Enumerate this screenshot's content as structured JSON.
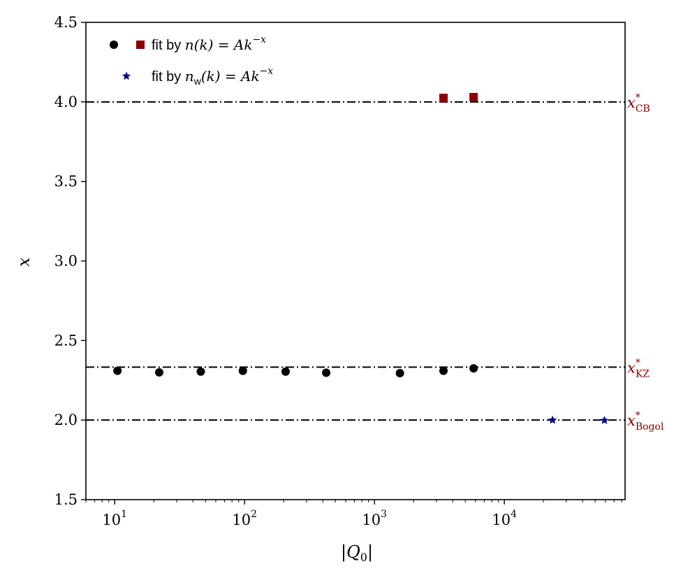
{
  "chart_data": {
    "type": "scatter",
    "xlabel": "|Q₀|",
    "ylabel": "x",
    "xscale": "log",
    "xlim": [
      6,
      85000
    ],
    "ylim": [
      1.5,
      4.5
    ],
    "grid": false,
    "legend_position": "top-left",
    "y_ticks": [
      {
        "value": 1.5,
        "label": "1.5"
      },
      {
        "value": 2.0,
        "label": "2.0"
      },
      {
        "value": 2.5,
        "label": "2.5"
      },
      {
        "value": 3.0,
        "label": "3.0"
      },
      {
        "value": 3.5,
        "label": "3.5"
      },
      {
        "value": 4.0,
        "label": "4.0"
      },
      {
        "value": 4.5,
        "label": "4.5"
      }
    ],
    "x_ticks": [
      {
        "value": 10,
        "base": "10",
        "exp": "1"
      },
      {
        "value": 100,
        "base": "10",
        "exp": "2"
      },
      {
        "value": 1000,
        "base": "10",
        "exp": "3"
      },
      {
        "value": 10000,
        "base": "10",
        "exp": "4"
      }
    ],
    "reference_lines": [
      {
        "y": 4.0,
        "label_main": "x",
        "label_sup": "*",
        "label_sub": "CB",
        "color": "#8b0000"
      },
      {
        "y": 2.333,
        "label_main": "x",
        "label_sup": "*",
        "label_sub": "KZ",
        "color": "#8b0000"
      },
      {
        "y": 2.0,
        "label_main": "x",
        "label_sup": "*",
        "label_sub": "Bogol",
        "color": "#8b0000"
      }
    ],
    "series": [
      {
        "marker": "circle",
        "color": "#000000",
        "points": [
          {
            "x": 10.5,
            "y": 2.31
          },
          {
            "x": 22,
            "y": 2.3
          },
          {
            "x": 46,
            "y": 2.305
          },
          {
            "x": 97,
            "y": 2.31
          },
          {
            "x": 207,
            "y": 2.305
          },
          {
            "x": 425,
            "y": 2.298
          },
          {
            "x": 1570,
            "y": 2.295
          },
          {
            "x": 3400,
            "y": 2.31
          },
          {
            "x": 5800,
            "y": 2.325
          }
        ]
      },
      {
        "marker": "square",
        "color": "#8b0000",
        "points": [
          {
            "x": 3400,
            "y": 4.025
          },
          {
            "x": 5800,
            "y": 4.03
          }
        ]
      },
      {
        "marker": "star",
        "color": "#000080",
        "points": [
          {
            "x": 23500,
            "y": 2.0
          },
          {
            "x": 59000,
            "y": 1.998
          }
        ]
      }
    ],
    "legend": [
      {
        "markers": [
          "circle",
          "square"
        ],
        "text_prefix": "fit by ",
        "formula": "n(k) = Ak",
        "formula_sup": "−x"
      },
      {
        "markers": [
          "star"
        ],
        "text_prefix": "fit by ",
        "formula": "n",
        "formula_sub": "w",
        "formula_rest": "(k) = Ak",
        "formula_sup": "−x"
      }
    ]
  }
}
